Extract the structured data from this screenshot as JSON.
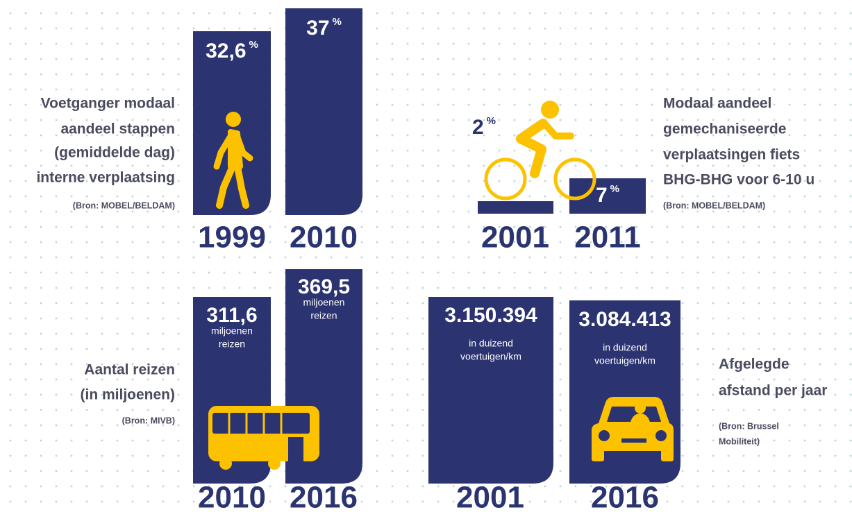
{
  "panels": [
    {
      "label": [
        "Voetganger modaal",
        "aandeel stappen",
        "(gemiddelde dag)",
        "interne verplaatsing"
      ],
      "source": [
        "(Bron: MOBEL/BELDAM)"
      ],
      "bars": [
        {
          "year": "1999",
          "value": "32,6",
          "unit": [
            "%"
          ]
        },
        {
          "year": "2010",
          "value": "37",
          "unit": [
            "%"
          ]
        }
      ]
    },
    {
      "label": [
        "Modaal aandeel",
        "gemechaniseerde",
        "verplaatsingen fiets",
        "BHG-BHG voor 6-10 u"
      ],
      "source": [
        "(Bron: MOBEL/BELDAM)"
      ],
      "bars": [
        {
          "year": "2001",
          "value": "2",
          "unit": [
            "%"
          ]
        },
        {
          "year": "2011",
          "value": "7",
          "unit": [
            "%"
          ]
        }
      ]
    },
    {
      "label": [
        "Aantal reizen",
        "(in miljoenen)"
      ],
      "source": [
        "(Bron: MIVB)"
      ],
      "bars": [
        {
          "year": "2010",
          "value": "311,6",
          "unit": [
            "miljoenen",
            "reizen"
          ]
        },
        {
          "year": "2016",
          "value": "369,5",
          "unit": [
            "miljoenen",
            "reizen"
          ]
        }
      ]
    },
    {
      "label": [
        "Afgelegde",
        "afstand per jaar"
      ],
      "source": [
        "(Bron: Brussel",
        "Mobiliteit)"
      ],
      "bars": [
        {
          "year": "2001",
          "value": "3.150.394",
          "unit": [
            "in duizend",
            "voertuigen/km"
          ]
        },
        {
          "year": "2016",
          "value": "3.084.413",
          "unit": [
            "in duizend",
            "voertuigen/km"
          ]
        }
      ]
    }
  ]
}
